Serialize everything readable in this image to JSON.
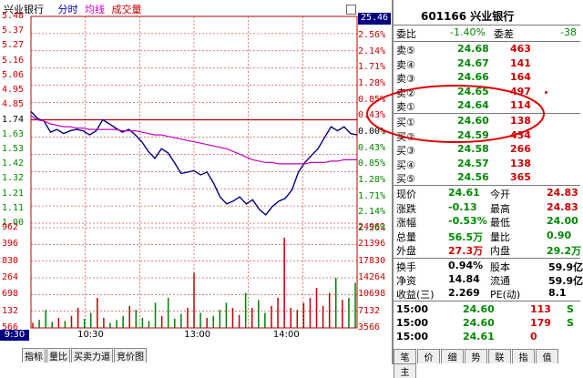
{
  "header": {
    "stock_name": "兴业银行",
    "mode_time": "分时",
    "mode_avg": "均线",
    "mode_vol": "成交量",
    "price_box": "25.46",
    "code_title": "601166 兴业银行"
  },
  "axis": {
    "left_price": [
      "5.48",
      "5.37",
      "5.27",
      "5.16",
      "5.06",
      "4.95",
      "4.85",
      "1.74",
      "1.63",
      "1.53",
      "1.42",
      "1.32",
      "1.21",
      "1.11",
      "1.00"
    ],
    "right_pct": [
      "2.56%",
      "2.14%",
      "1.71%",
      "1.28%",
      "0.85%",
      "0.43%",
      "0.00%",
      "0.43%",
      "0.85%",
      "1.28%",
      "1.71%",
      "2.14%",
      "2.56%"
    ],
    "left_vol": [
      "962",
      "396",
      "830",
      "264",
      "698",
      "132",
      "566"
    ],
    "right_vol": [
      "24962",
      "21396",
      "17830",
      "14264",
      "10698",
      "7132",
      "3566"
    ],
    "time_start": "9:30",
    "time_labels": [
      "10:30",
      "13:00",
      "14:00"
    ]
  },
  "chart_data": {
    "type": "line",
    "x_range": [
      "9:30",
      "15:00"
    ],
    "base_price": 24.74,
    "ylim": [
      23.96,
      25.46
    ],
    "series": [
      {
        "values": [
          24.77,
          24.72,
          24.7,
          24.62,
          24.64,
          24.61,
          24.63,
          24.64,
          24.63,
          24.6,
          24.63,
          24.71,
          24.68,
          24.65,
          24.62,
          24.64,
          24.6,
          24.55,
          24.48,
          24.43,
          24.5,
          24.47,
          24.4,
          24.32,
          24.33,
          24.34,
          24.31,
          24.33,
          24.25,
          24.15,
          24.1,
          24.12,
          24.15,
          24.1,
          24.13,
          24.06,
          24.02,
          24.08,
          24.12,
          24.14,
          24.2,
          24.33,
          24.4,
          24.45,
          24.5,
          24.58,
          24.66,
          24.63,
          24.66,
          24.61,
          24.6
        ]
      },
      {
        "values": [
          24.74,
          24.71,
          24.7,
          24.68,
          24.67,
          24.66,
          24.66,
          24.65,
          24.65,
          24.64,
          24.64,
          24.64,
          24.64,
          24.64,
          24.63,
          24.63,
          24.63,
          24.62,
          24.61,
          24.6,
          24.6,
          24.59,
          24.58,
          24.57,
          24.56,
          24.55,
          24.54,
          24.53,
          24.52,
          24.51,
          24.5,
          24.48,
          24.46,
          24.44,
          24.42,
          24.41,
          24.4,
          24.4,
          24.39,
          24.39,
          24.39,
          24.39,
          24.39,
          24.4,
          24.4,
          24.4,
          24.41,
          24.41,
          24.42,
          24.42,
          24.42
        ]
      }
    ],
    "volume": [
      0.05,
      0.08,
      0.18,
      0.06,
      0.1,
      0.07,
      0.12,
      0.2,
      0.09,
      0.15,
      0.3,
      0.1,
      0.05,
      0.08,
      0.12,
      0.22,
      0.18,
      0.1,
      0.07,
      0.25,
      0.12,
      0.3,
      0.09,
      0.14,
      0.2,
      0.55,
      0.15,
      0.1,
      0.12,
      0.18,
      0.25,
      0.2,
      0.13,
      0.35,
      0.2,
      0.28,
      0.15,
      0.22,
      0.3,
      0.9,
      0.2,
      0.18,
      0.25,
      0.3,
      0.4,
      0.22,
      0.35,
      0.5,
      0.28,
      0.3,
      0.45
    ],
    "colors": {
      "price": "#000080",
      "avg": "#c000c0",
      "up": "#c00000",
      "down": "#008000",
      "grid": "#c00000"
    }
  },
  "quote": {
    "wb_label": "委比",
    "wb_value": "-1.40%",
    "wc_label": "委差",
    "wc_value": "-38",
    "sell": [
      {
        "label": "卖⑤",
        "price": "24.68",
        "vol": "463"
      },
      {
        "label": "卖④",
        "price": "24.67",
        "vol": "141"
      },
      {
        "label": "卖③",
        "price": "24.66",
        "vol": "164"
      },
      {
        "label": "卖②",
        "price": "24.65",
        "vol": "497"
      },
      {
        "label": "卖①",
        "price": "24.64",
        "vol": "114"
      }
    ],
    "buy": [
      {
        "label": "买①",
        "price": "24.60",
        "vol": "138"
      },
      {
        "label": "买②",
        "price": "24.59",
        "vol": "434"
      },
      {
        "label": "买③",
        "price": "24.58",
        "vol": "266"
      },
      {
        "label": "买④",
        "price": "24.57",
        "vol": "138"
      },
      {
        "label": "买⑤",
        "price": "24.56",
        "vol": "365"
      }
    ],
    "stats": [
      {
        "l1": "现价",
        "v1": "24.61",
        "l2": "今开",
        "v2": "24.83"
      },
      {
        "l1": "涨跌",
        "v1": "-0.13",
        "l2": "最高",
        "v2": "24.83"
      },
      {
        "l1": "涨幅",
        "v1": "-0.53%",
        "l2": "最低",
        "v2": "24.00"
      },
      {
        "l1": "总量",
        "v1": "56.5万",
        "l2": "量比",
        "v2": "0.90"
      },
      {
        "l1": "外盘",
        "v1": "27.3万",
        "l2": "内盘",
        "v2": "29.2万"
      }
    ],
    "stats2": [
      {
        "l1": "换手",
        "v1": "0.94%",
        "l2": "股本",
        "v2": "59.9亿"
      },
      {
        "l1": "净资",
        "v1": "14.84",
        "l2": "流通",
        "v2": "59.9亿"
      },
      {
        "l1": "收益(三)",
        "v1": "2.269",
        "l2": "PE(动)",
        "v2": "8.1"
      }
    ],
    "ticks": [
      {
        "time": "15:00",
        "price": "24.60",
        "vol": "113",
        "side": "S"
      },
      {
        "time": "15:00",
        "price": "24.60",
        "vol": "179",
        "side": "S"
      },
      {
        "time": "15:00",
        "price": "24.61",
        "vol": "0",
        "side": ""
      }
    ]
  },
  "tabs_left": [
    "指标",
    "量比",
    "买卖力道",
    "竞价图"
  ],
  "tabs_right": [
    "笔",
    "价",
    "细",
    "势",
    "联",
    "指",
    "值",
    "主"
  ]
}
